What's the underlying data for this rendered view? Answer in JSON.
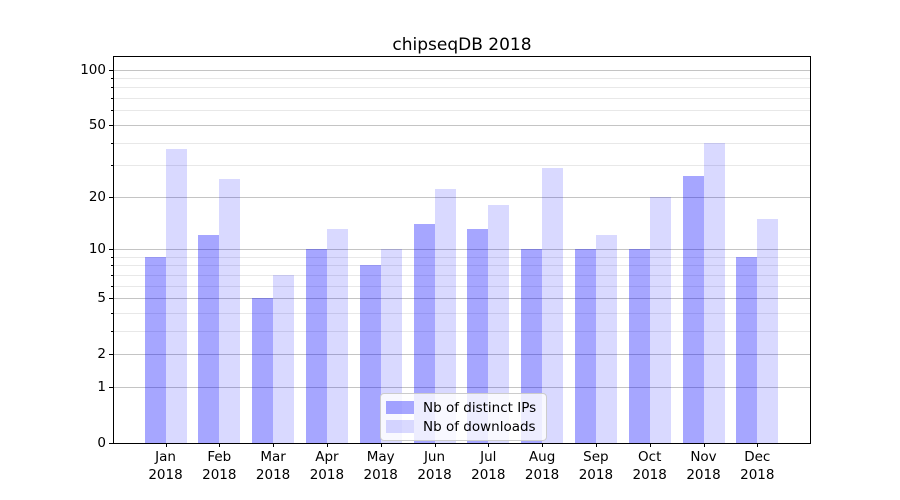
{
  "chart_data": {
    "type": "bar",
    "title": "chipseqDB 2018",
    "categories": [
      "Jan\n2018",
      "Feb\n2018",
      "Mar\n2018",
      "Apr\n2018",
      "May\n2018",
      "Jun\n2018",
      "Jul\n2018",
      "Aug\n2018",
      "Sep\n2018",
      "Oct\n2018",
      "Nov\n2018",
      "Dec\n2018"
    ],
    "series": [
      {
        "name": "Nb of distinct IPs",
        "color": "rgba(0,0,255,0.35)",
        "values": [
          9,
          12,
          5,
          10,
          8,
          14,
          13,
          10,
          10,
          10,
          26,
          9
        ]
      },
      {
        "name": "Nb of downloads",
        "color": "rgba(0,0,255,0.15)",
        "values": [
          37,
          25,
          7,
          13,
          10,
          22,
          18,
          29,
          12,
          20,
          40,
          15
        ]
      }
    ],
    "xlabel": "",
    "ylabel": "",
    "yscale": "log1p",
    "ylim": [
      0,
      117
    ],
    "ytick_values": [
      0,
      1,
      2,
      5,
      10,
      20,
      50,
      100
    ],
    "ytick_labels": [
      "0",
      "1",
      "2",
      "5",
      "10",
      "20",
      "50",
      "100"
    ],
    "minor_ytick_values": [
      3,
      4,
      6,
      7,
      8,
      9,
      30,
      40,
      60,
      70,
      80,
      90
    ],
    "grid": true,
    "legend_position": "lower center"
  }
}
